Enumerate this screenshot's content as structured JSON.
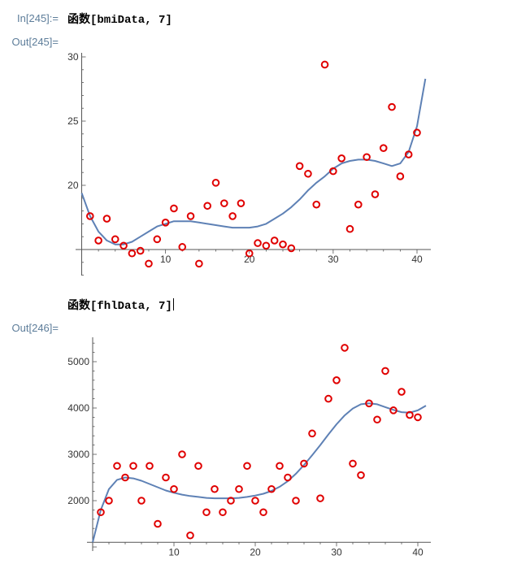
{
  "cells": [
    {
      "in_label": "In[245]:=",
      "input": "函数[bmiData, 7]",
      "out_label": "Out[245]="
    },
    {
      "in_label": "",
      "input": "函数[fhlData, 7]",
      "out_label": "Out[246]="
    }
  ],
  "colors": {
    "curve": "#5e81b5",
    "points": "#e00000",
    "label": "#5d7d9a"
  },
  "chart_data": [
    {
      "type": "scatter",
      "title": "",
      "xlabel": "",
      "ylabel": "",
      "xlim": [
        0,
        41
      ],
      "ylim": [
        13,
        30
      ],
      "origin_y": 15,
      "xticks": [
        10,
        20,
        30,
        40
      ],
      "yticks": [
        20,
        25,
        30
      ],
      "points": [
        [
          1,
          17.6
        ],
        [
          2,
          15.7
        ],
        [
          3,
          17.4
        ],
        [
          4,
          15.8
        ],
        [
          5,
          15.3
        ],
        [
          6,
          14.7
        ],
        [
          7,
          14.9
        ],
        [
          8,
          13.9
        ],
        [
          9,
          15.8
        ],
        [
          10,
          17.1
        ],
        [
          11,
          18.2
        ],
        [
          12,
          15.2
        ],
        [
          13,
          17.6
        ],
        [
          14,
          13.9
        ],
        [
          15,
          18.4
        ],
        [
          16,
          20.2
        ],
        [
          17,
          18.6
        ],
        [
          18,
          17.6
        ],
        [
          19,
          18.6
        ],
        [
          20,
          14.7
        ],
        [
          21,
          15.5
        ],
        [
          22,
          15.3
        ],
        [
          23,
          15.7
        ],
        [
          24,
          15.4
        ],
        [
          25,
          15.1
        ],
        [
          26,
          21.5
        ],
        [
          27,
          20.9
        ],
        [
          28,
          18.5
        ],
        [
          29,
          29.4
        ],
        [
          30,
          21.1
        ],
        [
          31,
          22.1
        ],
        [
          32,
          16.6
        ],
        [
          33,
          18.5
        ],
        [
          34,
          22.2
        ],
        [
          35,
          19.3
        ],
        [
          36,
          22.9
        ],
        [
          37,
          26.1
        ],
        [
          38,
          20.7
        ],
        [
          39,
          22.4
        ],
        [
          40,
          24.1
        ]
      ],
      "fit_curve": [
        [
          0,
          19.4
        ],
        [
          1,
          17.6
        ],
        [
          2,
          16.4
        ],
        [
          3,
          15.7
        ],
        [
          4,
          15.4
        ],
        [
          5,
          15.4
        ],
        [
          6,
          15.6
        ],
        [
          7,
          16.0
        ],
        [
          8,
          16.4
        ],
        [
          9,
          16.8
        ],
        [
          10,
          17.0
        ],
        [
          11,
          17.2
        ],
        [
          12,
          17.2
        ],
        [
          13,
          17.2
        ],
        [
          14,
          17.1
        ],
        [
          15,
          17.0
        ],
        [
          16,
          16.9
        ],
        [
          17,
          16.8
        ],
        [
          18,
          16.7
        ],
        [
          19,
          16.7
        ],
        [
          20,
          16.7
        ],
        [
          21,
          16.8
        ],
        [
          22,
          17.0
        ],
        [
          23,
          17.4
        ],
        [
          24,
          17.8
        ],
        [
          25,
          18.3
        ],
        [
          26,
          18.9
        ],
        [
          27,
          19.6
        ],
        [
          28,
          20.2
        ],
        [
          29,
          20.7
        ],
        [
          30,
          21.3
        ],
        [
          31,
          21.7
        ],
        [
          32,
          21.9
        ],
        [
          33,
          22.0
        ],
        [
          34,
          22.0
        ],
        [
          35,
          21.9
        ],
        [
          36,
          21.7
        ],
        [
          37,
          21.5
        ],
        [
          38,
          21.7
        ],
        [
          39,
          22.6
        ],
        [
          40,
          24.6
        ],
        [
          41,
          28.3
        ]
      ]
    },
    {
      "type": "scatter",
      "title": "",
      "xlabel": "",
      "ylabel": "",
      "xlim": [
        0,
        41
      ],
      "ylim": [
        1000,
        5600
      ],
      "origin_y": 1100,
      "xticks": [
        10,
        20,
        30,
        40
      ],
      "yticks": [
        2000,
        3000,
        4000,
        5000
      ],
      "points": [
        [
          1,
          1750
        ],
        [
          2,
          2000
        ],
        [
          3,
          2750
        ],
        [
          4,
          2500
        ],
        [
          5,
          2750
        ],
        [
          6,
          2000
        ],
        [
          7,
          2750
        ],
        [
          8,
          1500
        ],
        [
          9,
          2500
        ],
        [
          10,
          2250
        ],
        [
          11,
          3000
        ],
        [
          12,
          1250
        ],
        [
          13,
          2750
        ],
        [
          14,
          1750
        ],
        [
          15,
          2250
        ],
        [
          16,
          1750
        ],
        [
          17,
          2000
        ],
        [
          18,
          2250
        ],
        [
          19,
          2750
        ],
        [
          20,
          2000
        ],
        [
          21,
          1750
        ],
        [
          22,
          2250
        ],
        [
          23,
          2750
        ],
        [
          24,
          2500
        ],
        [
          25,
          2000
        ],
        [
          26,
          2800
        ],
        [
          27,
          3450
        ],
        [
          28,
          2050
        ],
        [
          29,
          4200
        ],
        [
          30,
          4600
        ],
        [
          31,
          5300
        ],
        [
          32,
          2800
        ],
        [
          33,
          2550
        ],
        [
          34,
          4100
        ],
        [
          35,
          3750
        ],
        [
          36,
          4800
        ],
        [
          37,
          3950
        ],
        [
          38,
          4350
        ],
        [
          39,
          3850
        ],
        [
          40,
          3800
        ]
      ],
      "fit_curve": [
        [
          0,
          1100
        ],
        [
          1,
          1800
        ],
        [
          2,
          2250
        ],
        [
          3,
          2450
        ],
        [
          4,
          2500
        ],
        [
          5,
          2480
        ],
        [
          6,
          2430
        ],
        [
          7,
          2360
        ],
        [
          8,
          2290
        ],
        [
          9,
          2220
        ],
        [
          10,
          2170
        ],
        [
          11,
          2130
        ],
        [
          12,
          2100
        ],
        [
          13,
          2080
        ],
        [
          14,
          2060
        ],
        [
          15,
          2050
        ],
        [
          16,
          2050
        ],
        [
          17,
          2050
        ],
        [
          18,
          2060
        ],
        [
          19,
          2080
        ],
        [
          20,
          2110
        ],
        [
          21,
          2150
        ],
        [
          22,
          2210
        ],
        [
          23,
          2300
        ],
        [
          24,
          2420
        ],
        [
          25,
          2580
        ],
        [
          26,
          2770
        ],
        [
          27,
          2980
        ],
        [
          28,
          3200
        ],
        [
          29,
          3430
        ],
        [
          30,
          3650
        ],
        [
          31,
          3840
        ],
        [
          32,
          3990
        ],
        [
          33,
          4080
        ],
        [
          34,
          4100
        ],
        [
          35,
          4080
        ],
        [
          36,
          4020
        ],
        [
          37,
          3960
        ],
        [
          38,
          3910
        ],
        [
          39,
          3900
        ],
        [
          40,
          3950
        ],
        [
          41,
          4050
        ]
      ]
    }
  ]
}
